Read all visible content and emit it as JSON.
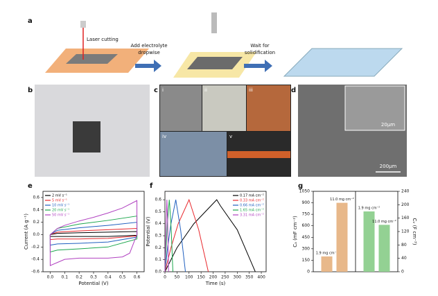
{
  "figure": {
    "a": {
      "label": "a",
      "steps": [
        [
          "Laser cutting"
        ],
        [
          "Add electrolyte",
          "dropwise"
        ],
        [
          "Wait for",
          "solidification"
        ]
      ]
    },
    "b": {
      "label": "b"
    },
    "c": {
      "label": "c",
      "subpanels": [
        "i",
        "ii",
        "iii",
        "iv",
        "v"
      ]
    },
    "d": {
      "label": "d",
      "scale_bars": [
        "20µm",
        "200µm"
      ]
    }
  },
  "chart_data": [
    {
      "type": "line",
      "label": "e",
      "xlabel": "Potential (V)",
      "ylabel": "Current (A g⁻¹)",
      "xlim": [
        -0.05,
        0.65
      ],
      "ylim": [
        -0.6,
        0.7
      ],
      "xticks": [
        {
          "value": 0,
          "label": "0.0"
        },
        0.1,
        0.2,
        0.3,
        0.4,
        0.5,
        0.6
      ],
      "yticks": [
        -0.6,
        -0.4,
        -0.2,
        {
          "value": 0,
          "label": "0.0"
        },
        0.2,
        0.4,
        0.6
      ],
      "legend": "upper left",
      "series": [
        {
          "name": "2 mV s⁻¹",
          "color": "#000000",
          "x": [
            0,
            0.05,
            0.2,
            0.4,
            0.6,
            0.6,
            0.4,
            0.2,
            0.05,
            0,
            0
          ],
          "values": [
            0,
            0.02,
            0.03,
            0.04,
            0.05,
            -0.01,
            -0.03,
            -0.03,
            -0.03,
            -0.03,
            0
          ]
        },
        {
          "name": "5 mV s⁻¹",
          "color": "#e8262b",
          "x": [
            0,
            0.05,
            0.2,
            0.4,
            0.6,
            0.6,
            0.4,
            0.2,
            0.05,
            0,
            0
          ],
          "values": [
            0,
            0.04,
            0.06,
            0.08,
            0.1,
            -0.02,
            -0.06,
            -0.07,
            -0.07,
            -0.08,
            0
          ]
        },
        {
          "name": "10 mV s⁻¹",
          "color": "#1f5fbf",
          "x": [
            0,
            0.05,
            0.2,
            0.4,
            0.6,
            0.6,
            0.4,
            0.2,
            0.05,
            0,
            0
          ],
          "values": [
            0,
            0.07,
            0.11,
            0.15,
            0.2,
            -0.04,
            -0.12,
            -0.14,
            -0.15,
            -0.17,
            0
          ]
        },
        {
          "name": "20 mV s⁻¹",
          "color": "#1aa64b",
          "x": [
            0,
            0.05,
            0.2,
            0.4,
            0.6,
            0.6,
            0.4,
            0.2,
            0.05,
            0,
            0
          ],
          "values": [
            0,
            0.1,
            0.17,
            0.23,
            0.3,
            -0.07,
            -0.2,
            -0.23,
            -0.25,
            -0.28,
            0
          ]
        },
        {
          "name": "50 mV s⁻¹",
          "color": "#b040c0",
          "x": [
            0,
            0.05,
            0.1,
            0.2,
            0.3,
            0.4,
            0.5,
            0.6,
            0.6,
            0.55,
            0.5,
            0.4,
            0.3,
            0.2,
            0.1,
            0.05,
            0,
            0
          ],
          "values": [
            0,
            0.1,
            0.15,
            0.22,
            0.28,
            0.35,
            0.43,
            0.55,
            0,
            -0.3,
            -0.36,
            -0.38,
            -0.38,
            -0.38,
            -0.4,
            -0.45,
            -0.5,
            0
          ]
        }
      ]
    },
    {
      "type": "line",
      "label": "f",
      "xlabel": "Time (s)",
      "ylabel": "Potential (V)",
      "xlim": [
        0,
        420
      ],
      "ylim": [
        0,
        0.67
      ],
      "xticks": [
        0,
        50,
        100,
        150,
        200,
        250,
        300,
        350,
        400
      ],
      "yticks": [
        {
          "value": 0,
          "label": "0.0"
        },
        0.1,
        0.2,
        0.3,
        0.4,
        0.5,
        0.6
      ],
      "legend": "upper right",
      "series": [
        {
          "name": "0.17 mA cm⁻²",
          "color": "#000000",
          "x": [
            0,
            50,
            120,
            215,
            230,
            300,
            375
          ],
          "values": [
            0,
            0.2,
            0.4,
            0.6,
            0.55,
            0.35,
            0
          ]
        },
        {
          "name": "0.33 mA cm⁻²",
          "color": "#e8262b",
          "x": [
            0,
            25,
            55,
            100,
            108,
            140,
            180
          ],
          "values": [
            0,
            0.2,
            0.4,
            0.6,
            0.55,
            0.35,
            0
          ]
        },
        {
          "name": "0.66 mA cm⁻²",
          "color": "#1f5fbf",
          "x": [
            0,
            11,
            25,
            45,
            49,
            65,
            85
          ],
          "values": [
            0,
            0.2,
            0.4,
            0.6,
            0.55,
            0.35,
            0
          ]
        },
        {
          "name": "1.65 mA cm⁻²",
          "color": "#1aa64b",
          "x": [
            0,
            5,
            10,
            18,
            20,
            26,
            33
          ],
          "values": [
            0,
            0.2,
            0.4,
            0.6,
            0.55,
            0.35,
            0
          ]
        },
        {
          "name": "3.31 mA cm⁻²",
          "color": "#b040c0",
          "x": [
            0,
            2,
            5,
            8,
            9,
            12,
            15
          ],
          "values": [
            0,
            0.2,
            0.4,
            0.6,
            0.55,
            0.35,
            0
          ]
        }
      ]
    },
    {
      "type": "bar",
      "label": "g",
      "ylabel": "Cₐ (mF cm⁻²)",
      "y2label": "Cᵥ (F cm⁻³)",
      "categories": [
        "1.9 mg cm⁻²",
        "11.0 mg cm⁻²"
      ],
      "ylim": [
        0,
        1050
      ],
      "yticks": [
        0,
        150,
        300,
        450,
        600,
        750,
        900,
        1050
      ],
      "y2lim": [
        0,
        240
      ],
      "y2ticks": [
        0,
        40,
        80,
        120,
        160,
        200,
        240
      ],
      "series": [
        {
          "color": "#e8b88a",
          "values": [
            200,
            900
          ]
        },
        {
          "color": "#93d193",
          "values": [
            180,
            140
          ],
          "axis": "y2"
        }
      ]
    }
  ]
}
